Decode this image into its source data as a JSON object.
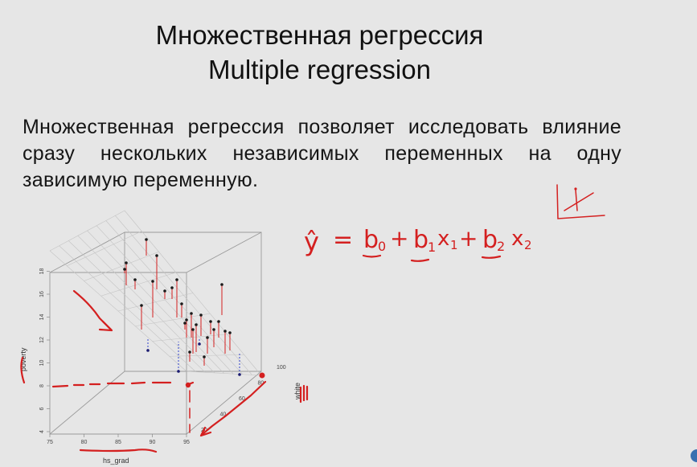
{
  "slide": {
    "title_ru": "Множественная регрессия",
    "title_en": "Multiple regression",
    "body": "Множественная регрессия позволяет исследовать влияние сразу нескольких независимых переменных на одну зависимую переменную."
  },
  "formula": {
    "lhs": "ŷ",
    "eq": "=",
    "b0": "b",
    "b0_sub": "0",
    "plus1": "+",
    "b1": "b",
    "b1_sub": "1",
    "x1": "x",
    "x1_sub": "1",
    "plus2": "+",
    "b2": "b",
    "b2_sub": "2",
    "x2": "x",
    "x2_sub": "2"
  },
  "plot": {
    "axis_labels": {
      "z": "poverty",
      "x": "hs_grad",
      "y": "white"
    },
    "z_ticks": [
      "4",
      "6",
      "8",
      "10",
      "12",
      "14",
      "16",
      "18"
    ],
    "x_ticks": [
      "75",
      "80",
      "85",
      "90",
      "95"
    ],
    "y_ticks": [
      "20",
      "40",
      "60",
      "80",
      "100"
    ],
    "annotation_colors": {
      "ink": "#d42020",
      "points": "#1a1a40",
      "residual": "#3344cc"
    }
  }
}
